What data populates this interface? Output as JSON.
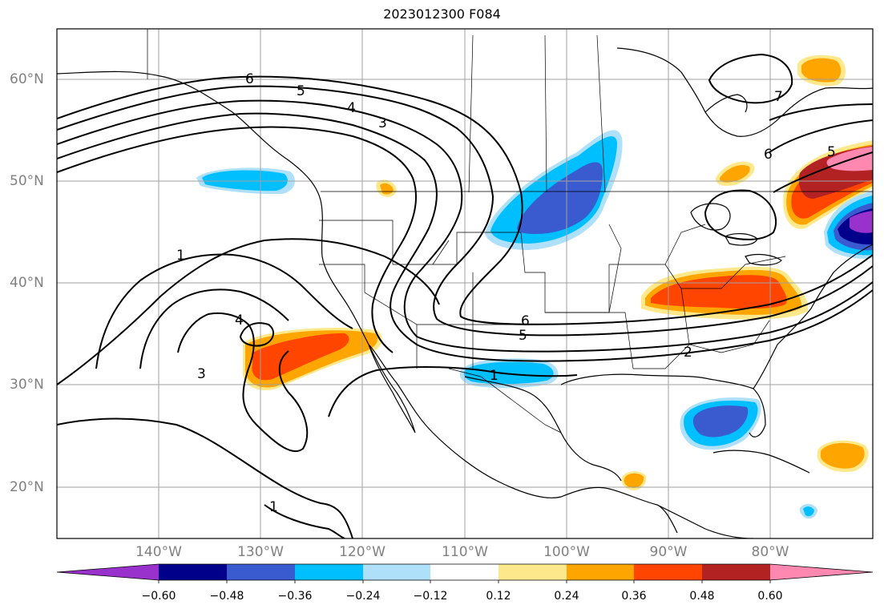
{
  "title": "2023012300 F084",
  "lat_labels": [
    "60°N",
    "50°N",
    "40°N",
    "30°N",
    "20°N"
  ],
  "lon_labels": [
    "140°W",
    "130°W",
    "120°W",
    "110°W",
    "100°W",
    "90°W",
    "80°W"
  ],
  "colorbar": {
    "tick_labels": [
      "−0.60",
      "−0.48",
      "−0.36",
      "−0.24",
      "−0.12",
      "0.12",
      "0.24",
      "0.36",
      "0.48",
      "0.60"
    ],
    "colors": [
      "#9932cc",
      "#00008b",
      "#3a5bd0",
      "#00bfff",
      "#aee0fa",
      "#ffffff",
      "#fde98c",
      "#ffa500",
      "#ff4500",
      "#b22222",
      "#ff88b0"
    ]
  },
  "contour_labels": [
    "6",
    "5",
    "4",
    "3",
    "1",
    "4",
    "3",
    "1",
    "7",
    "6",
    "5",
    "6",
    "5",
    "2",
    "1"
  ],
  "colors": {
    "contour": "#000000",
    "grid": "#a0a0a0",
    "axis_label": "#808080"
  }
}
